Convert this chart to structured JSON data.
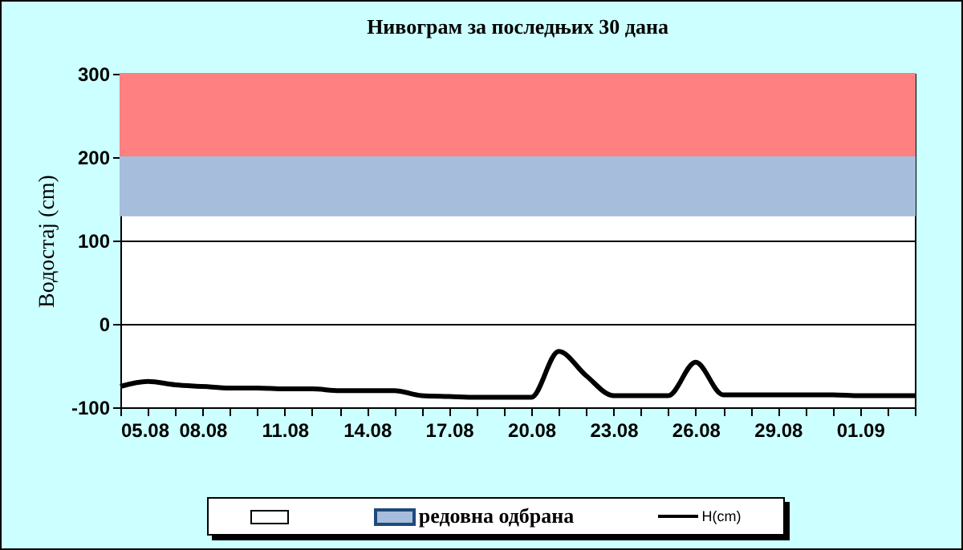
{
  "chart_data": {
    "type": "line",
    "title": "Нивограм за последњих 30 дана",
    "ylabel": "Водостај (cm)",
    "x": [
      "--08-05",
      "--08-06",
      "--08-07",
      "--08-08",
      "--08-09",
      "--08-10",
      "--08-11",
      "--08-12",
      "--08-13",
      "--08-14",
      "--08-15",
      "--08-16",
      "--08-17",
      "--08-18",
      "--08-19",
      "--08-20",
      "--08-21",
      "--08-22",
      "--08-23",
      "--08-24",
      "--08-25",
      "--08-26",
      "--08-27",
      "--08-28",
      "--08-29",
      "--08-30",
      "--08-31",
      "--09-01",
      "--09-02",
      "--09-03"
    ],
    "series": [
      {
        "name": "H(cm)",
        "color": "#000000",
        "values": [
          -75,
          -69,
          -73,
          -75,
          -77,
          -77,
          -78,
          -78,
          -80,
          -80,
          -80,
          -86,
          -87,
          -88,
          -88,
          -88,
          -33,
          -62,
          -86,
          -86,
          -86,
          -46,
          -85,
          -85,
          -85,
          -85,
          -85,
          -86,
          -86,
          -86
        ]
      }
    ],
    "bands": [
      {
        "axis": "y",
        "from": 200,
        "to": 300,
        "label": null,
        "color": "#ff8080"
      },
      {
        "axis": "y",
        "from": 130,
        "to": 200,
        "label": "редовна одбрана",
        "color": "#a6bddb"
      }
    ],
    "ylim": [
      -100,
      300
    ],
    "yticks": [
      -100,
      0,
      100,
      200,
      300
    ],
    "xlim": [
      "--08-05",
      "--09-03"
    ],
    "xticks": [
      {
        "value": "--08-05",
        "label": "05.08"
      },
      {
        "value": "--08-06",
        "label": null
      },
      {
        "value": "--08-07",
        "label": null
      },
      {
        "value": "--08-08",
        "label": "08.08"
      },
      {
        "value": "--08-09",
        "label": null
      },
      {
        "value": "--08-10",
        "label": null
      },
      {
        "value": "--08-11",
        "label": "11.08"
      },
      {
        "value": "--08-12",
        "label": null
      },
      {
        "value": "--08-13",
        "label": null
      },
      {
        "value": "--08-14",
        "label": "14.08"
      },
      {
        "value": "--08-15",
        "label": null
      },
      {
        "value": "--08-16",
        "label": null
      },
      {
        "value": "--08-17",
        "label": "17.08"
      },
      {
        "value": "--08-18",
        "label": null
      },
      {
        "value": "--08-19",
        "label": null
      },
      {
        "value": "--08-20",
        "label": "20.08"
      },
      {
        "value": "--08-21",
        "label": null
      },
      {
        "value": "--08-22",
        "label": null
      },
      {
        "value": "--08-23",
        "label": "23.08"
      },
      {
        "value": "--08-24",
        "label": null
      },
      {
        "value": "--08-25",
        "label": null
      },
      {
        "value": "--08-26",
        "label": "26.08"
      },
      {
        "value": "--08-27",
        "label": null
      },
      {
        "value": "--08-28",
        "label": null
      },
      {
        "value": "--08-29",
        "label": "29.08"
      },
      {
        "value": "--08-30",
        "label": null
      },
      {
        "value": "--08-31",
        "label": null
      },
      {
        "value": "--09-01",
        "label": "01.09"
      },
      {
        "value": "--09-02",
        "label": null
      },
      {
        "value": "--09-03",
        "label": null
      }
    ],
    "grid": "y",
    "legend": "bottom",
    "marker": "none",
    "line_style": "solid"
  }
}
